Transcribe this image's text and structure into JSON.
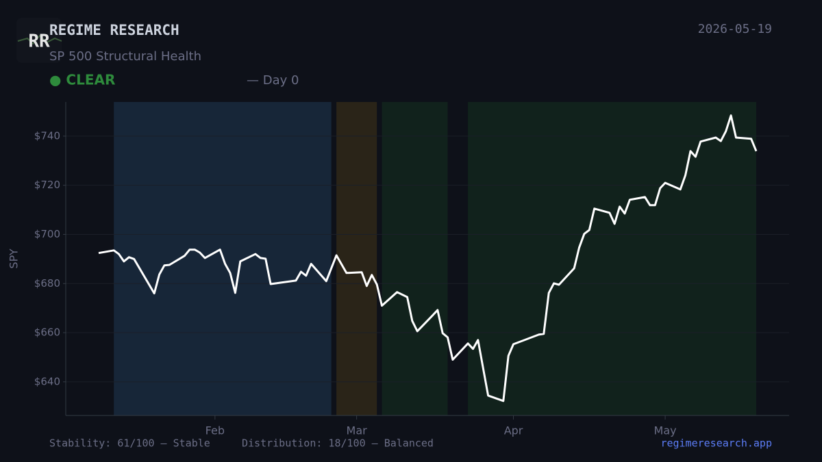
{
  "header": {
    "logo": "RR",
    "title": "REGIME RESEARCH",
    "subtitle": "SP 500 Structural Health",
    "date": "2026-05-19",
    "status": "● CLEAR",
    "status_detail": "— Day 0"
  },
  "chart_data": {
    "type": "line",
    "y_label": "SPY",
    "color": "#ffffff",
    "x": [
      9,
      12,
      13,
      14,
      15,
      16,
      20,
      21,
      22,
      23,
      26,
      27,
      28,
      29,
      30,
      33,
      34,
      35,
      36,
      37,
      40,
      41,
      42,
      43,
      48,
      49,
      50,
      51,
      54,
      56,
      58,
      61,
      62,
      63,
      64,
      65,
      68,
      70,
      71,
      72,
      75,
      76,
      77,
      78,
      79,
      82,
      83,
      84,
      86,
      89,
      90,
      91,
      96,
      97,
      98,
      99,
      100,
      103,
      104,
      105,
      106,
      107,
      110,
      111,
      112,
      113,
      114,
      117,
      118,
      119,
      120,
      121,
      124,
      125,
      126,
      127,
      128,
      131,
      132,
      133,
      134,
      135,
      138,
      139
    ],
    "values": [
      692.4,
      693.5,
      692,
      689,
      690.7,
      690,
      676,
      683.7,
      687.4,
      687.6,
      691.3,
      693.8,
      693.8,
      692.6,
      690.4,
      693.8,
      688,
      684.3,
      676.2,
      689,
      692,
      690.4,
      690.1,
      679.8,
      681.2,
      684.8,
      683.2,
      688,
      681,
      691.5,
      684.3,
      684.6,
      679,
      683.5,
      679.6,
      671,
      676.5,
      674.5,
      664.8,
      660.6,
      667,
      669.2,
      659.8,
      658.1,
      649,
      655.6,
      653.4,
      657,
      634.4,
      632.2,
      650.6,
      655.3,
      659.2,
      659.5,
      676.2,
      680.1,
      679.5,
      686.2,
      694.6,
      700.2,
      701.8,
      710.5,
      708.8,
      704.3,
      711.3,
      708.5,
      714.1,
      715.2,
      711.9,
      711.9,
      718.8,
      721,
      718.3,
      724.1,
      733.9,
      731.6,
      737.8,
      739.4,
      738,
      742,
      748.4,
      739.4,
      738.9,
      733.9
    ],
    "regions": [
      {
        "start": 12,
        "end": 55,
        "color": "#172638"
      },
      {
        "start": 56,
        "end": 64,
        "color": "#2a2418"
      },
      {
        "start": 65,
        "end": 78,
        "color": "#11221c"
      },
      {
        "start": 82,
        "end": 139,
        "color": "#11221c"
      }
    ],
    "xlim": [
      2.5,
      145.5
    ],
    "xticks": [
      {
        "value": 32,
        "label": "Feb"
      },
      {
        "value": 60,
        "label": "Mar"
      },
      {
        "value": 91,
        "label": "Apr"
      },
      {
        "value": 121,
        "label": "May"
      }
    ],
    "ylim": [
      626.3,
      753.9
    ],
    "yticks": [
      {
        "value": 640,
        "label": "$640"
      },
      {
        "value": 660,
        "label": "$660"
      },
      {
        "value": 680,
        "label": "$680"
      },
      {
        "value": 700,
        "label": "$700"
      },
      {
        "value": 720,
        "label": "$720"
      },
      {
        "value": 740,
        "label": "$740"
      }
    ],
    "grid": true
  },
  "footer": {
    "stability": "Stability: 61/100 — Stable",
    "distribution": "Distribution: 18/100 — Balanced",
    "link": "regimeresearch.app"
  }
}
